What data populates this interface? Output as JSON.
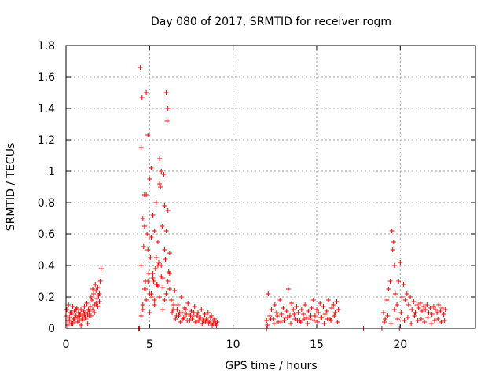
{
  "chart_data": {
    "type": "scatter",
    "title": "Day 080 of 2017, SRMTID for receiver rogm",
    "xlabel": "GPS time / hours",
    "ylabel": "SRMTID / TECUs",
    "xlim": [
      0,
      24.5
    ],
    "ylim": [
      0,
      1.8
    ],
    "xticks": [
      0,
      5,
      10,
      15,
      20
    ],
    "yticks": [
      0,
      0.2,
      0.4,
      0.6,
      0.8,
      1,
      1.2,
      1.4,
      1.6,
      1.8
    ],
    "ytick_labels": [
      "0",
      "0.2",
      "0.4",
      "0.6",
      "0.8",
      "1",
      "1.2",
      "1.4",
      "1.6",
      "1.8"
    ],
    "grid": true,
    "marker": "plus",
    "color": "#ff0000",
    "series": [
      {
        "name": "",
        "x": [
          0.0,
          0.05,
          0.1,
          0.15,
          0.2,
          0.25,
          0.3,
          0.35,
          0.4,
          0.45,
          0.5,
          0.55,
          0.6,
          0.65,
          0.7,
          0.75,
          0.8,
          0.85,
          0.9,
          0.95,
          1.0,
          1.05,
          1.1,
          1.15,
          1.2,
          1.25,
          1.3,
          1.35,
          1.4,
          1.45,
          1.5,
          1.55,
          1.6,
          1.65,
          1.7,
          1.75,
          1.8,
          1.85,
          1.9,
          1.95,
          2.0,
          2.05,
          2.1,
          0.1,
          0.2,
          0.3,
          0.4,
          0.5,
          0.6,
          0.7,
          0.8,
          0.9,
          1.0,
          1.1,
          1.2,
          1.3,
          1.4,
          1.5,
          1.6,
          1.7,
          1.8,
          1.9,
          2.0,
          4.4,
          4.5,
          4.55,
          4.6,
          4.65,
          4.7,
          4.75,
          4.8,
          4.85,
          4.9,
          4.95,
          5.0,
          5.05,
          5.1,
          5.15,
          5.2,
          5.25,
          5.3,
          5.35,
          5.4,
          5.45,
          5.5,
          5.55,
          5.6,
          5.65,
          5.7,
          5.75,
          5.8,
          5.85,
          5.9,
          5.95,
          6.0,
          6.05,
          6.1,
          6.15,
          6.2,
          4.45,
          4.5,
          4.6,
          4.7,
          4.75,
          4.8,
          4.9,
          5.0,
          5.1,
          5.2,
          5.3,
          5.4,
          5.5,
          5.6,
          5.7,
          5.8,
          5.9,
          6.0,
          6.1,
          6.2,
          4.5,
          4.6,
          4.7,
          4.8,
          4.9,
          5.0,
          5.1,
          5.2,
          5.3,
          5.4,
          5.5,
          5.6,
          5.7,
          5.8,
          5.9,
          6.0,
          6.1,
          6.2,
          6.3,
          6.4,
          6.5,
          6.6,
          6.7,
          6.8,
          6.9,
          7.0,
          7.1,
          7.2,
          7.3,
          7.4,
          7.5,
          7.6,
          7.7,
          7.8,
          7.9,
          8.0,
          8.1,
          8.2,
          8.3,
          8.4,
          8.5,
          8.6,
          8.7,
          8.8,
          8.9,
          9.0,
          9.05,
          6.35,
          6.45,
          6.55,
          6.65,
          6.75,
          6.85,
          6.95,
          7.05,
          7.15,
          7.25,
          7.35,
          7.45,
          7.55,
          7.65,
          7.75,
          7.85,
          7.95,
          8.05,
          8.15,
          8.25,
          8.35,
          8.45,
          8.55,
          8.65,
          8.75,
          8.85,
          8.95,
          12.0,
          12.1,
          12.2,
          12.3,
          12.4,
          12.5,
          12.6,
          12.7,
          12.8,
          12.9,
          13.0,
          13.1,
          13.2,
          13.3,
          13.4,
          13.5,
          13.6,
          13.7,
          13.8,
          13.9,
          14.0,
          14.1,
          14.2,
          14.3,
          14.4,
          14.5,
          14.6,
          14.7,
          14.8,
          14.9,
          15.0,
          15.1,
          15.2,
          15.3,
          15.4,
          15.5,
          15.6,
          15.7,
          15.8,
          15.9,
          16.0,
          16.1,
          16.2,
          16.3,
          12.05,
          12.25,
          12.45,
          12.65,
          12.85,
          13.05,
          13.25,
          13.45,
          13.65,
          13.85,
          14.05,
          14.25,
          14.45,
          14.65,
          14.85,
          15.05,
          15.25,
          15.45,
          15.65,
          15.85,
          16.05,
          16.25,
          4.35,
          12.0,
          17.8,
          18.9,
          19.95,
          19.0,
          19.1,
          19.2,
          19.3,
          19.4,
          19.5,
          19.55,
          19.6,
          19.65,
          19.7,
          19.8,
          19.9,
          20.0,
          20.1,
          20.2,
          20.3,
          20.4,
          20.5,
          20.6,
          20.7,
          20.8,
          20.9,
          21.0,
          21.1,
          21.2,
          21.3,
          21.4,
          21.5,
          21.6,
          21.7,
          21.8,
          21.9,
          22.0,
          22.1,
          22.2,
          22.3,
          22.4,
          22.5,
          22.6,
          22.7,
          19.05,
          19.25,
          19.45,
          19.65,
          19.85,
          20.05,
          20.25,
          20.45,
          20.65,
          20.85,
          21.05,
          21.25,
          21.45,
          21.65,
          21.85,
          22.05,
          22.25,
          22.45,
          22.65
        ],
        "y": [
          0.08,
          0.12,
          0.05,
          0.15,
          0.07,
          0.1,
          0.03,
          0.09,
          0.14,
          0.06,
          0.11,
          0.04,
          0.08,
          0.13,
          0.07,
          0.1,
          0.05,
          0.09,
          0.12,
          0.06,
          0.08,
          0.11,
          0.14,
          0.07,
          0.1,
          0.16,
          0.09,
          0.12,
          0.08,
          0.14,
          0.2,
          0.18,
          0.25,
          0.22,
          0.15,
          0.28,
          0.24,
          0.19,
          0.26,
          0.21,
          0.17,
          0.3,
          0.38,
          0.02,
          0.05,
          0.1,
          0.03,
          0.06,
          0.12,
          0.04,
          0.08,
          0.02,
          0.05,
          0.09,
          0.06,
          0.03,
          0.11,
          0.08,
          0.12,
          0.1,
          0.16,
          0.14,
          0.22,
          0.0,
          0.4,
          1.47,
          0.15,
          0.52,
          0.85,
          0.25,
          1.5,
          0.6,
          1.23,
          0.35,
          0.95,
          0.45,
          1.02,
          0.2,
          0.72,
          0.3,
          0.62,
          0.38,
          0.8,
          0.28,
          0.55,
          0.42,
          1.08,
          0.9,
          1.0,
          0.65,
          0.32,
          0.98,
          0.5,
          0.44,
          1.5,
          1.32,
          0.75,
          0.36,
          0.25,
          1.66,
          1.15,
          0.7,
          0.65,
          0.3,
          0.85,
          0.5,
          0.22,
          0.58,
          0.32,
          0.18,
          0.45,
          0.27,
          0.92,
          0.4,
          0.12,
          0.78,
          0.62,
          1.4,
          0.48,
          0.08,
          0.12,
          0.25,
          0.18,
          0.3,
          0.1,
          0.22,
          0.35,
          0.15,
          0.28,
          0.4,
          0.2,
          0.33,
          0.26,
          0.18,
          0.22,
          0.3,
          0.35,
          0.18,
          0.12,
          0.24,
          0.08,
          0.15,
          0.1,
          0.2,
          0.06,
          0.13,
          0.09,
          0.16,
          0.05,
          0.11,
          0.08,
          0.14,
          0.04,
          0.1,
          0.07,
          0.12,
          0.05,
          0.09,
          0.06,
          0.1,
          0.04,
          0.08,
          0.03,
          0.06,
          0.02,
          0.04,
          0.1,
          0.15,
          0.06,
          0.12,
          0.08,
          0.04,
          0.1,
          0.07,
          0.12,
          0.05,
          0.09,
          0.08,
          0.06,
          0.1,
          0.04,
          0.08,
          0.05,
          0.07,
          0.03,
          0.06,
          0.04,
          0.05,
          0.03,
          0.07,
          0.02,
          0.05,
          0.03,
          0.05,
          0.22,
          0.08,
          0.12,
          0.06,
          0.15,
          0.1,
          0.04,
          0.18,
          0.09,
          0.13,
          0.07,
          0.11,
          0.25,
          0.08,
          0.16,
          0.12,
          0.06,
          0.14,
          0.1,
          0.05,
          0.12,
          0.09,
          0.15,
          0.07,
          0.11,
          0.06,
          0.13,
          0.18,
          0.08,
          0.12,
          0.1,
          0.16,
          0.07,
          0.14,
          0.09,
          0.11,
          0.18,
          0.06,
          0.13,
          0.15,
          0.1,
          0.17,
          0.12,
          0.02,
          0.06,
          0.03,
          0.08,
          0.04,
          0.05,
          0.07,
          0.03,
          0.09,
          0.05,
          0.04,
          0.06,
          0.03,
          0.08,
          0.05,
          0.04,
          0.07,
          0.03,
          0.06,
          0.05,
          0.08,
          0.04,
          0.0,
          0.0,
          0.0,
          0.0,
          0.0,
          0.1,
          0.06,
          0.18,
          0.25,
          0.3,
          0.62,
          0.5,
          0.55,
          0.4,
          0.22,
          0.15,
          0.3,
          0.42,
          0.2,
          0.28,
          0.18,
          0.22,
          0.15,
          0.2,
          0.12,
          0.17,
          0.1,
          0.15,
          0.13,
          0.16,
          0.11,
          0.14,
          0.12,
          0.15,
          0.1,
          0.13,
          0.09,
          0.14,
          0.12,
          0.1,
          0.15,
          0.11,
          0.13,
          0.09,
          0.12,
          0.04,
          0.08,
          0.03,
          0.12,
          0.06,
          0.1,
          0.05,
          0.07,
          0.03,
          0.08,
          0.05,
          0.06,
          0.04,
          0.07,
          0.03,
          0.05,
          0.06,
          0.04,
          0.05
        ]
      }
    ]
  }
}
